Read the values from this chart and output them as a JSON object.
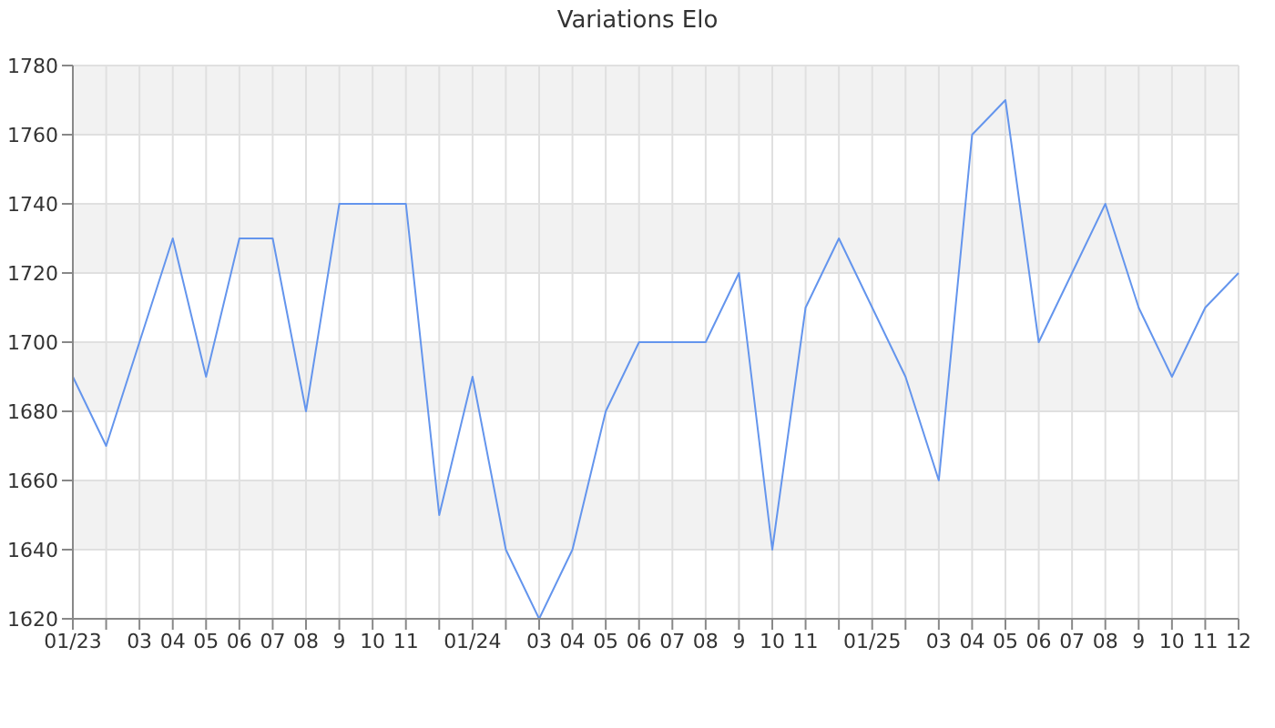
{
  "chart_data": {
    "type": "line",
    "title": "Variations Elo",
    "categories": [
      "01/23",
      null,
      "03",
      "04",
      "05",
      "06",
      "07",
      "08",
      "9",
      "10",
      "11",
      null,
      "01/24",
      null,
      "03",
      "04",
      "05",
      "06",
      "07",
      "08",
      "9",
      "10",
      "11",
      null,
      "01/25",
      null,
      "03",
      "04",
      "05",
      "06",
      "07",
      "08",
      "9",
      "10",
      "11",
      "12"
    ],
    "series": [
      {
        "color": "#6495ed",
        "values": [
          1690,
          1670,
          1700,
          1730,
          1690,
          1730,
          1730,
          1680,
          1740,
          1740,
          1740,
          1650,
          1690,
          1640,
          1620,
          1640,
          1680,
          1700,
          1700,
          1700,
          1720,
          1640,
          1710,
          1730,
          1710,
          1690,
          1660,
          1760,
          1770,
          1700,
          1720,
          1740,
          1710,
          1690,
          1710,
          1720
        ]
      }
    ],
    "ylim": [
      1620,
      1780
    ],
    "yticks": [
      1620,
      1640,
      1660,
      1680,
      1700,
      1720,
      1740,
      1760,
      1780
    ],
    "grid": true,
    "marker": "none",
    "line_style": "solid"
  }
}
